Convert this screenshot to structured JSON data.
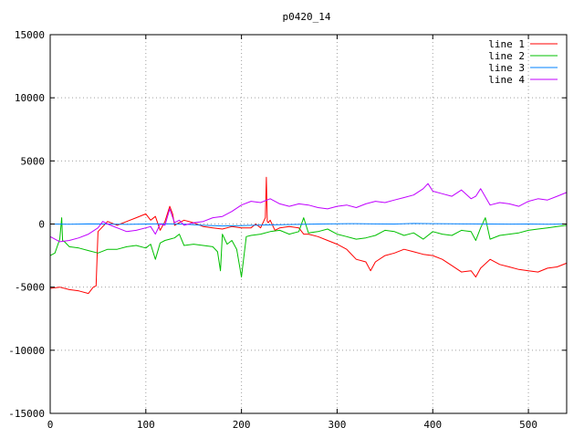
{
  "chart_data": {
    "type": "line",
    "title": "p0420_14",
    "xlabel": "",
    "ylabel": "",
    "xlim": [
      0,
      540
    ],
    "ylim": [
      -15000,
      15000
    ],
    "xticks": [
      0,
      100,
      200,
      300,
      400,
      500
    ],
    "yticks": [
      -15000,
      -10000,
      -5000,
      0,
      5000,
      10000,
      15000
    ],
    "grid": true,
    "legend_position": "top-right",
    "series": [
      {
        "name": "line 1",
        "color": "#ff0000",
        "x": [
          0,
          10,
          20,
          30,
          40,
          45,
          48,
          50,
          55,
          60,
          70,
          80,
          90,
          100,
          105,
          110,
          115,
          120,
          125,
          128,
          130,
          135,
          140,
          150,
          160,
          170,
          180,
          190,
          200,
          210,
          215,
          220,
          225,
          226,
          227,
          228,
          230,
          235,
          240,
          250,
          260,
          265,
          270,
          280,
          290,
          300,
          310,
          320,
          330,
          335,
          340,
          350,
          360,
          370,
          380,
          390,
          400,
          410,
          420,
          430,
          440,
          445,
          450,
          460,
          470,
          480,
          490,
          500,
          510,
          520,
          530,
          540
        ],
        "y": [
          -5100,
          -5000,
          -5200,
          -5300,
          -5500,
          -5000,
          -4900,
          -600,
          -200,
          200,
          -100,
          200,
          500,
          800,
          300,
          600,
          -500,
          200,
          1400,
          800,
          -100,
          100,
          300,
          100,
          -200,
          -300,
          -400,
          -200,
          -300,
          -300,
          0,
          -300,
          500,
          3700,
          200,
          100,
          300,
          -500,
          -300,
          -200,
          -300,
          -800,
          -800,
          -1000,
          -1300,
          -1600,
          -2000,
          -2800,
          -3000,
          -3700,
          -3000,
          -2500,
          -2300,
          -2000,
          -2200,
          -2400,
          -2500,
          -2800,
          -3300,
          -3800,
          -3700,
          -4200,
          -3500,
          -2800,
          -3200,
          -3400,
          -3600,
          -3700,
          -3800,
          -3500,
          -3400,
          -3100
        ]
      },
      {
        "name": "line 2",
        "color": "#00c000",
        "x": [
          0,
          5,
          10,
          12,
          13,
          15,
          20,
          30,
          40,
          50,
          60,
          70,
          80,
          90,
          100,
          105,
          110,
          115,
          120,
          125,
          130,
          135,
          140,
          150,
          160,
          170,
          175,
          178,
          180,
          185,
          190,
          195,
          200,
          205,
          210,
          220,
          230,
          240,
          250,
          260,
          265,
          270,
          280,
          290,
          300,
          310,
          320,
          330,
          340,
          350,
          360,
          370,
          380,
          390,
          400,
          410,
          420,
          430,
          440,
          445,
          450,
          455,
          460,
          470,
          480,
          490,
          500,
          510,
          520,
          530,
          540
        ],
        "y": [
          -2500,
          -2300,
          -1200,
          500,
          -1300,
          -1400,
          -1800,
          -1900,
          -2100,
          -2300,
          -2000,
          -2000,
          -1800,
          -1700,
          -1900,
          -1600,
          -2800,
          -1500,
          -1300,
          -1200,
          -1100,
          -800,
          -1700,
          -1600,
          -1700,
          -1800,
          -2200,
          -3700,
          -800,
          -1600,
          -1300,
          -2000,
          -4200,
          -1000,
          -900,
          -800,
          -600,
          -500,
          -800,
          -600,
          500,
          -700,
          -600,
          -400,
          -800,
          -1000,
          -1200,
          -1100,
          -900,
          -500,
          -600,
          -900,
          -700,
          -1200,
          -600,
          -800,
          -900,
          -500,
          -600,
          -1300,
          -300,
          500,
          -1200,
          -900,
          -800,
          -700,
          -500,
          -400,
          -300,
          -200,
          -100
        ]
      },
      {
        "name": "line 3",
        "color": "#0080ff",
        "x": [
          0,
          20,
          40,
          60,
          80,
          100,
          120,
          140,
          160,
          180,
          200,
          220,
          240,
          260,
          280,
          300,
          320,
          340,
          360,
          380,
          400,
          420,
          440,
          460,
          480,
          500,
          520,
          540
        ],
        "y": [
          0,
          -20,
          10,
          0,
          -30,
          0,
          20,
          -10,
          -100,
          -150,
          -120,
          -80,
          -50,
          -30,
          0,
          20,
          30,
          10,
          0,
          40,
          30,
          20,
          10,
          0,
          -10,
          0,
          -20,
          0
        ]
      },
      {
        "name": "line 4",
        "color": "#c000ff",
        "x": [
          0,
          5,
          10,
          20,
          30,
          40,
          50,
          55,
          60,
          70,
          80,
          90,
          100,
          105,
          110,
          115,
          120,
          125,
          130,
          135,
          140,
          150,
          160,
          170,
          180,
          190,
          200,
          210,
          220,
          230,
          240,
          250,
          260,
          270,
          280,
          290,
          300,
          310,
          320,
          330,
          340,
          350,
          360,
          370,
          380,
          390,
          395,
          400,
          410,
          420,
          430,
          440,
          445,
          450,
          460,
          470,
          480,
          490,
          500,
          510,
          520,
          530,
          540
        ],
        "y": [
          -1000,
          -1200,
          -1400,
          -1300,
          -1100,
          -800,
          -300,
          200,
          0,
          -300,
          -600,
          -500,
          -300,
          -200,
          -800,
          0,
          -100,
          1200,
          100,
          300,
          -100,
          100,
          200,
          500,
          600,
          1000,
          1500,
          1800,
          1700,
          2000,
          1600,
          1400,
          1600,
          1500,
          1300,
          1200,
          1400,
          1500,
          1300,
          1600,
          1800,
          1700,
          1900,
          2100,
          2300,
          2800,
          3200,
          2600,
          2400,
          2200,
          2700,
          2000,
          2200,
          2800,
          1500,
          1700,
          1600,
          1400,
          1800,
          2000,
          1900,
          2200,
          2500
        ]
      }
    ]
  }
}
